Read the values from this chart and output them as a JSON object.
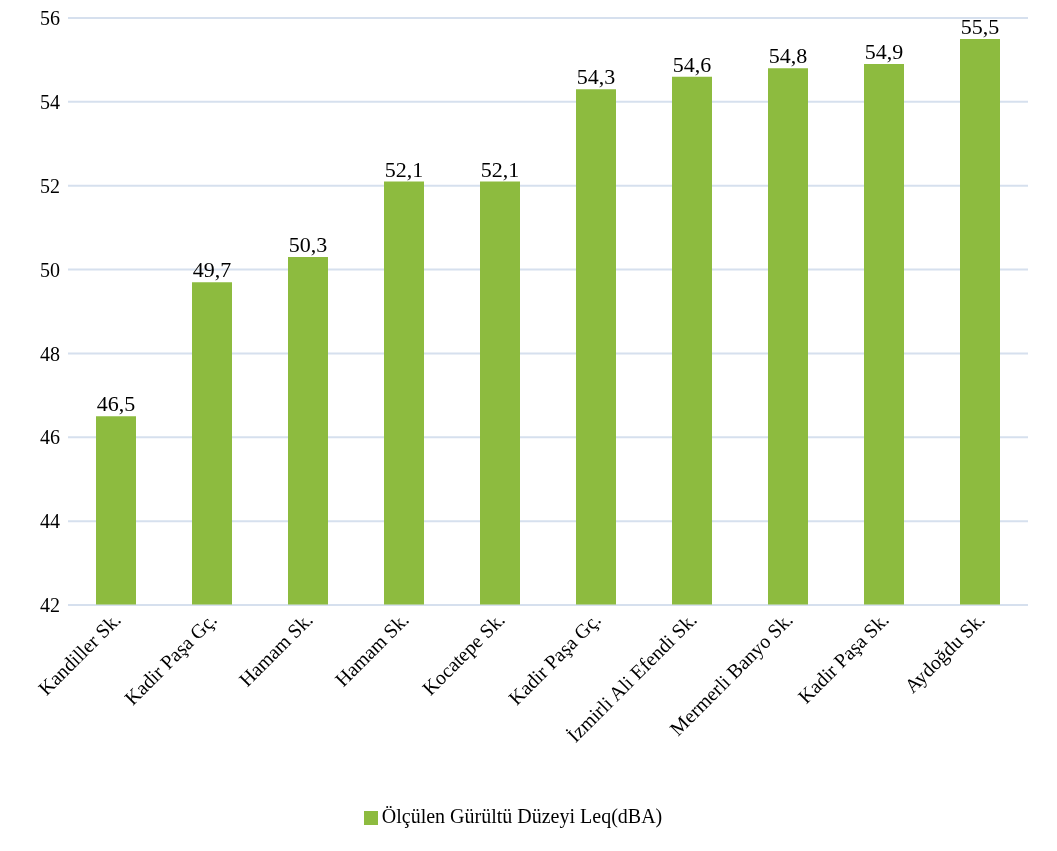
{
  "chart_data": {
    "type": "bar",
    "categories": [
      "Kandiller Sk.",
      "Kadir Paşa Gç.",
      "Hamam Sk.",
      "Hamam Sk.",
      "Kocatepe Sk.",
      "Kadir Paşa Gç.",
      "İzmirli Ali Efendi Sk.",
      "Mermerli Banyo Sk.",
      "Kadir Paşa Sk.",
      "Aydoğdu Sk."
    ],
    "series": [
      {
        "name": "Ölçülen Gürültü Düzeyi Leq(dBA)",
        "color": "#8dbb3f",
        "values": [
          46.5,
          49.7,
          50.3,
          52.1,
          52.1,
          54.3,
          54.6,
          54.8,
          54.9,
          55.5
        ],
        "value_labels": [
          "46,5",
          "49,7",
          "50,3",
          "52,1",
          "52,1",
          "54,3",
          "54,6",
          "54,8",
          "54,9",
          "55,5"
        ]
      }
    ],
    "ylim": [
      42,
      56
    ],
    "yticks": [
      42,
      44,
      46,
      48,
      50,
      52,
      54,
      56
    ],
    "grid": "y",
    "legend": "bottom"
  }
}
